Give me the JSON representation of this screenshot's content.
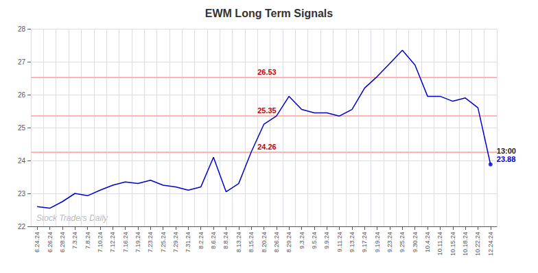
{
  "chart_data": {
    "type": "line",
    "title": "EWM Long Term Signals",
    "categories": [
      "6.24.24",
      "6.26.24",
      "6.28.24",
      "7.3.24",
      "7.8.24",
      "7.10.24",
      "7.12.24",
      "7.16.24",
      "7.19.24",
      "7.23.24",
      "7.25.24",
      "7.29.24",
      "7.31.24",
      "8.2.24",
      "8.6.24",
      "8.8.24",
      "8.13.24",
      "8.15.24",
      "8.20.24",
      "8.26.24",
      "8.29.24",
      "9.3.24",
      "9.5.24",
      "9.9.24",
      "9.11.24",
      "9.13.24",
      "9.17.24",
      "9.19.24",
      "9.23.24",
      "9.25.24",
      "9.30.24",
      "10.4.24",
      "10.11.24",
      "10.15.24",
      "10.18.24",
      "10.22.24",
      "12.24.24"
    ],
    "values": [
      22.6,
      22.55,
      22.75,
      23.0,
      22.93,
      23.1,
      23.25,
      23.35,
      23.3,
      23.4,
      23.25,
      23.2,
      23.1,
      23.2,
      24.1,
      23.05,
      23.3,
      24.26,
      25.1,
      25.35,
      25.95,
      25.55,
      25.45,
      25.45,
      25.35,
      25.55,
      26.2,
      26.55,
      26.95,
      27.35,
      26.9,
      25.95,
      25.95,
      25.8,
      25.9,
      25.6,
      23.88
    ],
    "color": "#0000cc",
    "hlines": [
      26.53,
      25.35,
      24.26
    ],
    "hline_color": "#ffb3b3",
    "annotations": [
      {
        "text": "26.53",
        "x": "8.15.24",
        "y": 26.53,
        "color": "#cc0000"
      },
      {
        "text": "25.35",
        "x": "8.15.24",
        "y": 25.35,
        "color": "#cc0000"
      },
      {
        "text": "24.26",
        "x": "8.15.24",
        "y": 24.26,
        "color": "#cc0000"
      },
      {
        "text": "13:00",
        "x": "12.24.24",
        "y": 23.88,
        "color": "#222222"
      },
      {
        "text": "23.88",
        "x": "12.24.24",
        "y": 23.88,
        "color": "#0000cc"
      },
      {
        "text": "Stock Traders Daily",
        "color": "#aaaaaa"
      }
    ],
    "ylim": [
      22,
      28
    ],
    "yticks": [
      22,
      23,
      24,
      25,
      26,
      27,
      28
    ],
    "grid": true
  }
}
